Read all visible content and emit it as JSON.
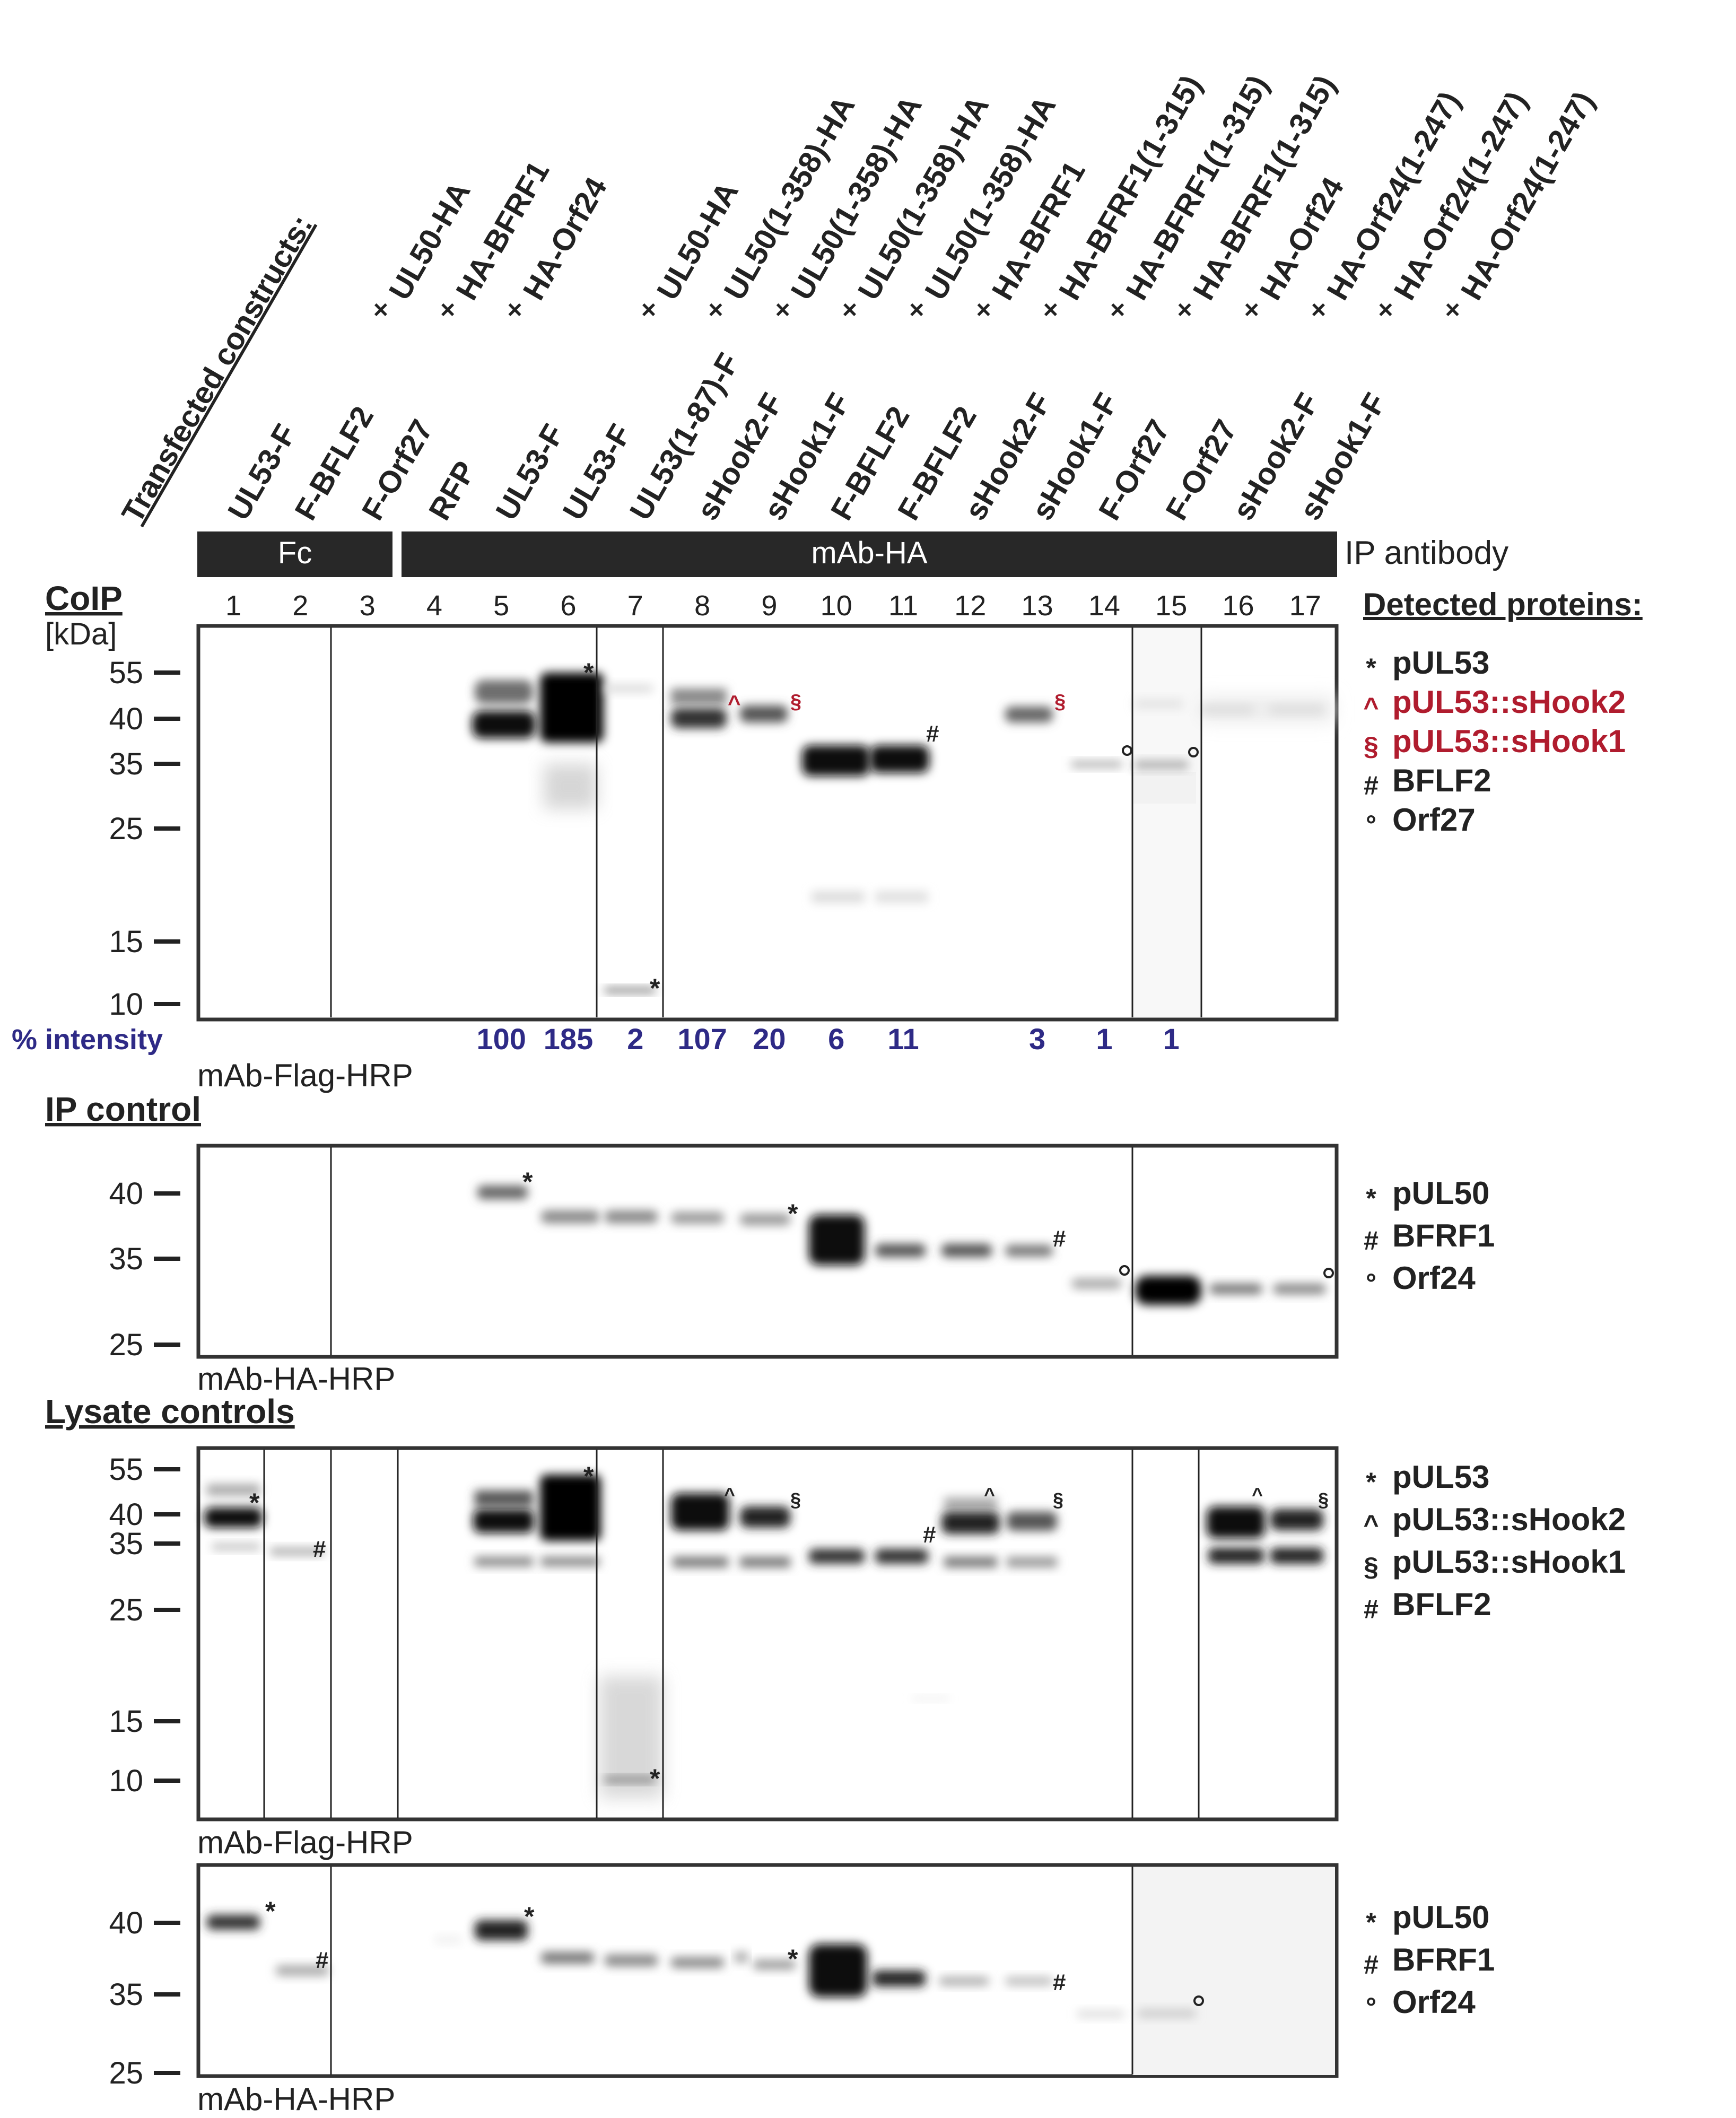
{
  "header": {
    "transfected_label": "Transfected constructs:",
    "upper_constructs": [
      "UL50-HA",
      "HA-BFRF1",
      "HA-Orf24",
      "UL50-HA",
      "UL50(1-358)-HA",
      "UL50(1-358)-HA",
      "UL50(1-358)-HA",
      "UL50(1-358)-HA",
      "HA-BFRF1",
      "HA-BFRF1(1-315)",
      "HA-BFRF1(1-315)",
      "HA-BFRF1(1-315)",
      "HA-Orf24",
      "HA-Orf24(1-247)",
      "HA-Orf24(1-247)",
      "HA-Orf24(1-247)"
    ],
    "lower_constructs": [
      "UL53-F",
      "F-BFLF2",
      "F-Orf27",
      "RFP",
      "UL53-F",
      "UL53-F",
      "UL53(1-87)-F",
      "sHook2-F",
      "sHook1-F",
      "F-BFLF2",
      "F-BFLF2",
      "sHook2-F",
      "sHook1-F",
      "F-Orf27",
      "F-Orf27",
      "sHook2-F",
      "sHook1-F"
    ],
    "cross_symbol": "×",
    "ip_fc": "Fc",
    "ip_mab": "mAb-HA",
    "ip_antibody_label": "IP antibody",
    "lane_numbers": [
      "1",
      "2",
      "3",
      "4",
      "5",
      "6",
      "7",
      "8",
      "9",
      "10",
      "11",
      "12",
      "13",
      "14",
      "15",
      "16",
      "17"
    ],
    "detected_title": "Detected proteins:"
  },
  "panels": {
    "coip": {
      "section_title": "CoIP",
      "unit": "[kDa]",
      "markers": [
        "55",
        "40",
        "35",
        "25",
        "15",
        "10"
      ],
      "detection": "mAb-Flag-HRP",
      "intensity_label": "% intensity",
      "intensity_values": [
        "100",
        "185",
        "2",
        "107",
        "20",
        "6",
        "11",
        "3",
        "1",
        "1"
      ],
      "legend": [
        {
          "sym": "*",
          "text": "pUL53",
          "color": "#222222"
        },
        {
          "sym": "^",
          "text": "pUL53::sHook2",
          "color": "#b01c2e"
        },
        {
          "sym": "§",
          "text": "pUL53::sHook1",
          "color": "#b01c2e"
        },
        {
          "sym": "#",
          "text": "BFLF2",
          "color": "#222222"
        },
        {
          "sym": "°",
          "text": "Orf27",
          "color": "#222222"
        }
      ]
    },
    "ipctrl": {
      "section_title": "IP control",
      "markers": [
        "40",
        "35",
        "25"
      ],
      "detection": "mAb-HA-HRP",
      "legend": [
        {
          "sym": "*",
          "text": "pUL50",
          "color": "#222222"
        },
        {
          "sym": "#",
          "text": "BFRF1",
          "color": "#222222"
        },
        {
          "sym": "°",
          "text": "Orf24",
          "color": "#222222"
        }
      ]
    },
    "lysate1": {
      "section_title": "Lysate controls",
      "markers": [
        "55",
        "40",
        "35",
        "25",
        "15",
        "10"
      ],
      "detection": "mAb-Flag-HRP",
      "legend": [
        {
          "sym": "*",
          "text": "pUL53",
          "color": "#222222"
        },
        {
          "sym": "^",
          "text": "pUL53::sHook2",
          "color": "#222222"
        },
        {
          "sym": "§",
          "text": "pUL53::sHook1",
          "color": "#222222"
        },
        {
          "sym": "#",
          "text": "BFLF2",
          "color": "#222222"
        }
      ]
    },
    "lysate2": {
      "markers": [
        "40",
        "35",
        "25"
      ],
      "detection": "mAb-HA-HRP",
      "legend": [
        {
          "sym": "*",
          "text": "pUL50",
          "color": "#222222"
        },
        {
          "sym": "#",
          "text": "BFRF1",
          "color": "#222222"
        },
        {
          "sym": "°",
          "text": "Orf24",
          "color": "#222222"
        }
      ]
    }
  },
  "colors": {
    "red_label": "#b01c2e",
    "blue_intensity": "#2e2a86",
    "dark_bar": "#282828"
  }
}
